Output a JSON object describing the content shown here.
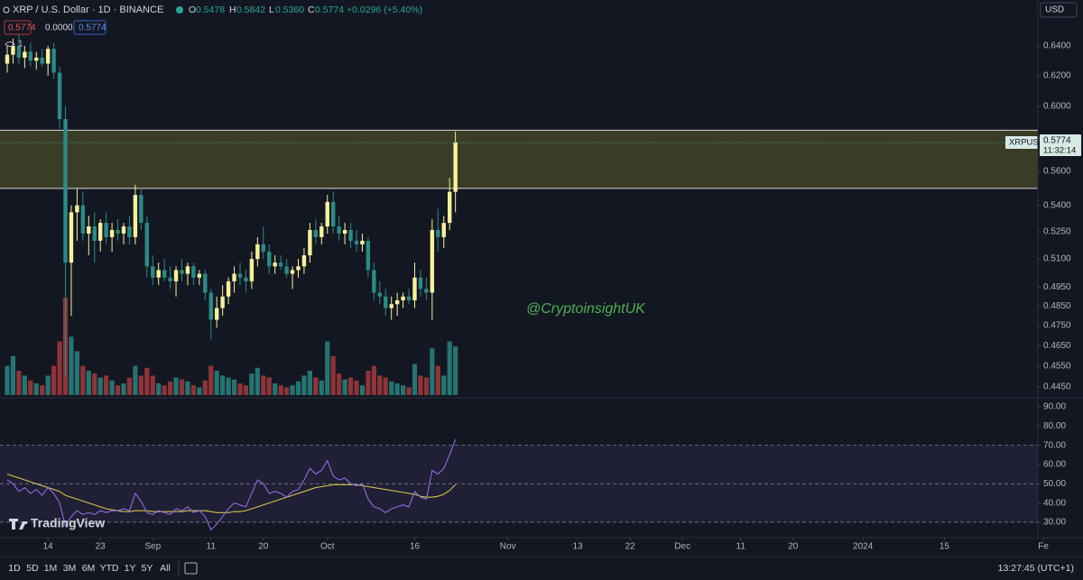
{
  "header": {
    "symbol": "XRP / U.S. Dollar · 1D · BINANCE",
    "o_label": "O",
    "o": "0.5478",
    "h_label": "H",
    "h": "0.5842",
    "l_label": "L",
    "l": "0.5360",
    "c_label": "C",
    "c": "0.5774",
    "change": "+0.0296 (+5.40%)",
    "currency": "USD"
  },
  "legend": {
    "values": [
      "0.5774",
      "0.0000",
      "0.5774"
    ],
    "count": "1"
  },
  "watermark": "@CryptoinsightUK",
  "logo": "TradingView",
  "toolbar": {
    "ranges": [
      "1D",
      "5D",
      "1M",
      "3M",
      "6M",
      "YTD",
      "1Y",
      "5Y",
      "All"
    ],
    "clock": "13:27:45 (UTC+1)"
  },
  "chart_data": {
    "type": "candlestick",
    "symbol_tag": "XRPUSD",
    "last_price_label": "0.5774",
    "countdown": "11:32:14",
    "log_scale": true,
    "grid": false,
    "ylim": [
      0.4403,
      0.658
    ],
    "yticks": [
      {
        "value": 0.64,
        "label": "0.6400"
      },
      {
        "value": 0.62,
        "label": "0.6200"
      },
      {
        "value": 0.6,
        "label": "0.6000"
      },
      {
        "value": 0.58,
        "label": "0.5800"
      },
      {
        "value": 0.56,
        "label": "0.5600"
      },
      {
        "value": 0.54,
        "label": "0.5400"
      },
      {
        "value": 0.525,
        "label": "0.5250"
      },
      {
        "value": 0.51,
        "label": "0.5100"
      },
      {
        "value": 0.495,
        "label": "0.4950"
      },
      {
        "value": 0.485,
        "label": "0.4850"
      },
      {
        "value": 0.475,
        "label": "0.4750"
      },
      {
        "value": 0.465,
        "label": "0.4650"
      },
      {
        "value": 0.455,
        "label": "0.4550"
      },
      {
        "value": 0.445,
        "label": "0.4450"
      }
    ],
    "xticks": [
      {
        "value": 7,
        "label": "14"
      },
      {
        "value": 16,
        "label": "23"
      },
      {
        "value": 25,
        "label": "Sep"
      },
      {
        "value": 35,
        "label": "11"
      },
      {
        "value": 44,
        "label": "20"
      },
      {
        "value": 55,
        "label": "Oct"
      },
      {
        "value": 70,
        "label": "16"
      },
      {
        "value": 86,
        "label": "Nov"
      },
      {
        "value": 98,
        "label": "13"
      },
      {
        "value": 107,
        "label": "22"
      },
      {
        "value": 116,
        "label": "Dec"
      },
      {
        "value": 126,
        "label": "11"
      },
      {
        "value": 135,
        "label": "20"
      },
      {
        "value": 147,
        "label": "2024"
      },
      {
        "value": 161,
        "label": "15"
      },
      {
        "value": 178,
        "label": "Fe"
      }
    ],
    "up_color": "#f7f199",
    "down_color": "#2b8a86",
    "volume_up_color": "#2a8580",
    "volume_down_color": "#a63a3d",
    "zone": [
      0.5498,
      0.585
    ],
    "zone_color": "#6b6b2a",
    "open": [
      0.628,
      0.634,
      0.64,
      0.632,
      0.636,
      0.63,
      0.632,
      0.628,
      0.638,
      0.622,
      0.592,
      0.508,
      0.536,
      0.54,
      0.524,
      0.528,
      0.52,
      0.53,
      0.522,
      0.526,
      0.524,
      0.528,
      0.522,
      0.546,
      0.53,
      0.506,
      0.5,
      0.504,
      0.5,
      0.498,
      0.504,
      0.502,
      0.506,
      0.5,
      0.502,
      0.492,
      0.478,
      0.484,
      0.49,
      0.498,
      0.502,
      0.5,
      0.498,
      0.51,
      0.518,
      0.514,
      0.506,
      0.508,
      0.506,
      0.502,
      0.504,
      0.506,
      0.512,
      0.526,
      0.522,
      0.528,
      0.542,
      0.528,
      0.524,
      0.526,
      0.52,
      0.518,
      0.52,
      0.504,
      0.492,
      0.49,
      0.484,
      0.486,
      0.488,
      0.49,
      0.488,
      0.5,
      0.494,
      0.492,
      0.526,
      0.522,
      0.53,
      0.5478
    ],
    "high": [
      0.64,
      0.645,
      0.648,
      0.64,
      0.642,
      0.636,
      0.638,
      0.64,
      0.642,
      0.626,
      0.6,
      0.54,
      0.55,
      0.548,
      0.534,
      0.536,
      0.532,
      0.536,
      0.53,
      0.532,
      0.53,
      0.534,
      0.552,
      0.55,
      0.534,
      0.512,
      0.508,
      0.51,
      0.506,
      0.506,
      0.51,
      0.508,
      0.508,
      0.504,
      0.504,
      0.494,
      0.49,
      0.496,
      0.5,
      0.506,
      0.508,
      0.504,
      0.514,
      0.522,
      0.528,
      0.518,
      0.512,
      0.512,
      0.51,
      0.506,
      0.51,
      0.516,
      0.53,
      0.532,
      0.53,
      0.546,
      0.548,
      0.534,
      0.53,
      0.53,
      0.526,
      0.524,
      0.522,
      0.508,
      0.498,
      0.494,
      0.49,
      0.492,
      0.492,
      0.494,
      0.508,
      0.504,
      0.5,
      0.532,
      0.538,
      0.534,
      0.556,
      0.5842
    ],
    "low": [
      0.622,
      0.628,
      0.628,
      0.625,
      0.626,
      0.624,
      0.626,
      0.62,
      0.618,
      0.586,
      0.45,
      0.48,
      0.52,
      0.52,
      0.512,
      0.508,
      0.514,
      0.518,
      0.514,
      0.52,
      0.518,
      0.518,
      0.518,
      0.526,
      0.5,
      0.496,
      0.496,
      0.498,
      0.494,
      0.49,
      0.498,
      0.496,
      0.496,
      0.496,
      0.488,
      0.468,
      0.474,
      0.48,
      0.486,
      0.492,
      0.496,
      0.492,
      0.494,
      0.506,
      0.51,
      0.502,
      0.502,
      0.504,
      0.5,
      0.494,
      0.5,
      0.502,
      0.508,
      0.518,
      0.518,
      0.524,
      0.524,
      0.52,
      0.518,
      0.516,
      0.514,
      0.514,
      0.5,
      0.488,
      0.486,
      0.48,
      0.478,
      0.48,
      0.484,
      0.486,
      0.484,
      0.49,
      0.488,
      0.478,
      0.514,
      0.516,
      0.526,
      0.536
    ],
    "close": [
      0.634,
      0.64,
      0.632,
      0.636,
      0.63,
      0.632,
      0.628,
      0.638,
      0.622,
      0.592,
      0.508,
      0.536,
      0.54,
      0.524,
      0.528,
      0.52,
      0.53,
      0.522,
      0.526,
      0.524,
      0.528,
      0.522,
      0.546,
      0.53,
      0.506,
      0.5,
      0.504,
      0.5,
      0.498,
      0.504,
      0.502,
      0.506,
      0.5,
      0.502,
      0.492,
      0.478,
      0.484,
      0.49,
      0.498,
      0.502,
      0.5,
      0.498,
      0.51,
      0.518,
      0.514,
      0.506,
      0.508,
      0.506,
      0.502,
      0.504,
      0.506,
      0.512,
      0.526,
      0.522,
      0.528,
      0.542,
      0.528,
      0.524,
      0.526,
      0.52,
      0.518,
      0.52,
      0.504,
      0.492,
      0.49,
      0.484,
      0.486,
      0.488,
      0.49,
      0.488,
      0.5,
      0.494,
      0.492,
      0.526,
      0.522,
      0.53,
      0.5478,
      0.5774
    ],
    "volume": [
      30,
      40,
      25,
      20,
      15,
      12,
      10,
      20,
      30,
      55,
      100,
      60,
      45,
      30,
      25,
      22,
      18,
      20,
      15,
      10,
      12,
      18,
      30,
      20,
      28,
      20,
      12,
      10,
      14,
      18,
      16,
      14,
      10,
      8,
      15,
      30,
      25,
      20,
      18,
      16,
      12,
      10,
      22,
      28,
      20,
      18,
      12,
      10,
      8,
      10,
      14,
      20,
      25,
      18,
      15,
      55,
      40,
      22,
      16,
      18,
      15,
      10,
      25,
      30,
      20,
      18,
      14,
      12,
      10,
      8,
      32,
      20,
      18,
      48,
      30,
      20,
      55,
      50
    ],
    "rsi": {
      "color": "#8e6ee0",
      "ma_color": "#d9c04a",
      "band_color": "#7e57c2",
      "ylim": [
        22,
        93.75
      ],
      "yticks": [
        {
          "value": 90,
          "label": "90.00"
        },
        {
          "value": 80,
          "label": "80.00"
        },
        {
          "value": 70,
          "label": "70.00"
        },
        {
          "value": 60,
          "label": "60.00"
        },
        {
          "value": 50,
          "label": "50.00"
        },
        {
          "value": 40,
          "label": "40.00"
        },
        {
          "value": 30,
          "label": "30.00"
        }
      ],
      "levels": [
        70,
        50,
        30
      ],
      "values": [
        52,
        50,
        46,
        48,
        45,
        47,
        44,
        48,
        45,
        40,
        28,
        33,
        36,
        34,
        35,
        34,
        36,
        35,
        36,
        36,
        37,
        36,
        45,
        41,
        35,
        34,
        36,
        35,
        34,
        37,
        36,
        38,
        35,
        36,
        33,
        26,
        29,
        33,
        37,
        40,
        39,
        38,
        45,
        52,
        50,
        45,
        46,
        45,
        43,
        46,
        47,
        52,
        58,
        55,
        57,
        62,
        54,
        52,
        53,
        50,
        49,
        50,
        42,
        38,
        37,
        35,
        37,
        38,
        39,
        38,
        46,
        43,
        42,
        57,
        55,
        58,
        65,
        73
      ],
      "ma": [
        55,
        54,
        53,
        52,
        51,
        50,
        49,
        48,
        47,
        46,
        44,
        43,
        42,
        41,
        40,
        39,
        38,
        37,
        36.5,
        36,
        35.5,
        35.5,
        36,
        36,
        36,
        35.5,
        35.5,
        35.5,
        35.5,
        35.5,
        35.5,
        36,
        36,
        36,
        36,
        35.5,
        35,
        35,
        35,
        35.5,
        35.5,
        36,
        37,
        38,
        39,
        40,
        41,
        42,
        43,
        44,
        45,
        46,
        47,
        48,
        48.5,
        49,
        49.5,
        49.5,
        49.5,
        49.5,
        49.5,
        49,
        48.5,
        48,
        47.5,
        47,
        46.5,
        46,
        45.5,
        45,
        44.5,
        43.5,
        43,
        43,
        43.5,
        44.5,
        46.5,
        49.5
      ]
    }
  }
}
